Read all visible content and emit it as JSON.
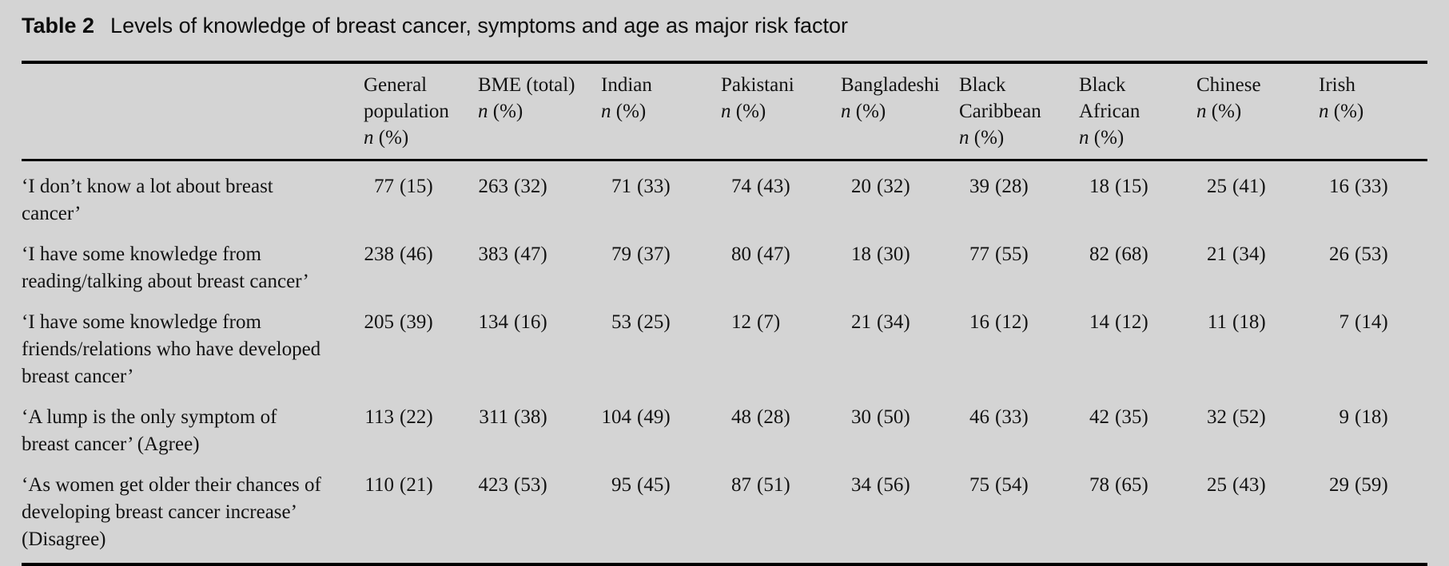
{
  "caption": {
    "label": "Table 2",
    "title": "Levels of knowledge of breast cancer, symptoms and age as major risk factor"
  },
  "colors": {
    "background": "#d4d4d4",
    "text": "#121212",
    "rule": "#000000"
  },
  "table": {
    "columns": [
      {
        "lines": [
          "General",
          "population"
        ],
        "sub_italic": "n",
        "sub_rest": " (%)"
      },
      {
        "lines": [
          "BME (total)"
        ],
        "sub_italic": "n",
        "sub_rest": " (%)"
      },
      {
        "lines": [
          "Indian"
        ],
        "sub_italic": "n",
        "sub_rest": " (%)"
      },
      {
        "lines": [
          "Pakistani"
        ],
        "sub_italic": "n",
        "sub_rest": " (%)"
      },
      {
        "lines": [
          "Bangladeshi"
        ],
        "sub_italic": "n",
        "sub_rest": " (%)"
      },
      {
        "lines": [
          "Black",
          "Caribbean"
        ],
        "sub_italic": "n",
        "sub_rest": " (%)"
      },
      {
        "lines": [
          "Black",
          "African"
        ],
        "sub_italic": "n",
        "sub_rest": " (%)"
      },
      {
        "lines": [
          "Chinese"
        ],
        "sub_italic": "n",
        "sub_rest": " (%)"
      },
      {
        "lines": [
          "Irish"
        ],
        "sub_italic": "n",
        "sub_rest": " (%)"
      }
    ],
    "rows": [
      {
        "label": "‘I don’t know a lot about breast cancer’",
        "values": [
          "77 (15)",
          "263 (32)",
          "71 (33)",
          "74 (43)",
          "20 (32)",
          "39 (28)",
          "18 (15)",
          "25 (41)",
          "16 (33)"
        ]
      },
      {
        "label": "‘I have some knowledge from reading/talking about breast cancer’",
        "values": [
          "238 (46)",
          "383 (47)",
          "79 (37)",
          "80 (47)",
          "18 (30)",
          "77 (55)",
          "82 (68)",
          "21 (34)",
          "26 (53)"
        ]
      },
      {
        "label": "‘I have some knowledge from friends/relations who have developed breast cancer’",
        "values": [
          "205 (39)",
          "134 (16)",
          "53 (25)",
          "12 (7)",
          "21 (34)",
          "16 (12)",
          "14 (12)",
          "11 (18)",
          "7 (14)"
        ]
      },
      {
        "label": "‘A lump is the only symptom of breast cancer’ (Agree)",
        "values": [
          "113 (22)",
          "311 (38)",
          "104 (49)",
          "48 (28)",
          "30 (50)",
          "46 (33)",
          "42 (35)",
          "32 (52)",
          "9 (18)"
        ]
      },
      {
        "label": "‘As women get older their chances of developing breast cancer increase’ (Disagree)",
        "values": [
          "110 (21)",
          "423 (53)",
          "95 (45)",
          "87 (51)",
          "34 (56)",
          "75 (54)",
          "78 (65)",
          "25 (43)",
          "29 (59)"
        ]
      }
    ]
  }
}
